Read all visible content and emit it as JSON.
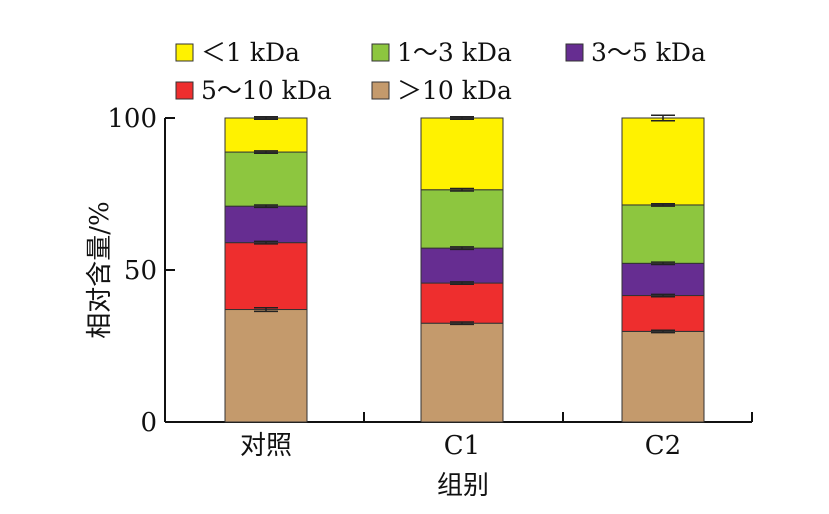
{
  "chart_data": {
    "type": "bar",
    "stacked": true,
    "categories": [
      "对照",
      "C1",
      "C2"
    ],
    "xlabel": "组别",
    "ylabel": "相对含量/%",
    "ylim": [
      0,
      100
    ],
    "yticks": [
      0,
      50,
      100
    ],
    "legend_position": "top",
    "series": [
      {
        "name": "＞10 kDa",
        "color": "#c49a6c",
        "values": [
          37,
          32.5,
          29.8
        ],
        "errors": [
          0.6,
          0.4,
          0.4
        ]
      },
      {
        "name": "5～10  kDa",
        "color": "#ee2e2e",
        "values": [
          22,
          13.2,
          11.8
        ],
        "errors": [
          0.4,
          0.4,
          0.4
        ]
      },
      {
        "name": "3～5  kDa",
        "color": "#662d91",
        "values": [
          12,
          11.5,
          10.6
        ],
        "errors": [
          0.4,
          0.4,
          0.4
        ]
      },
      {
        "name": "1～3  kDa",
        "color": "#8dc63f",
        "values": [
          17.8,
          19.2,
          19.2
        ],
        "errors": [
          0.4,
          0.4,
          0.4
        ]
      },
      {
        "name": "＜1 kDa",
        "color": "#fff200",
        "values": [
          11.2,
          23.6,
          28.6
        ],
        "errors": [
          0.4,
          0.4,
          0.9
        ]
      }
    ],
    "legend_order": [
      4,
      3,
      2,
      1,
      0
    ]
  }
}
